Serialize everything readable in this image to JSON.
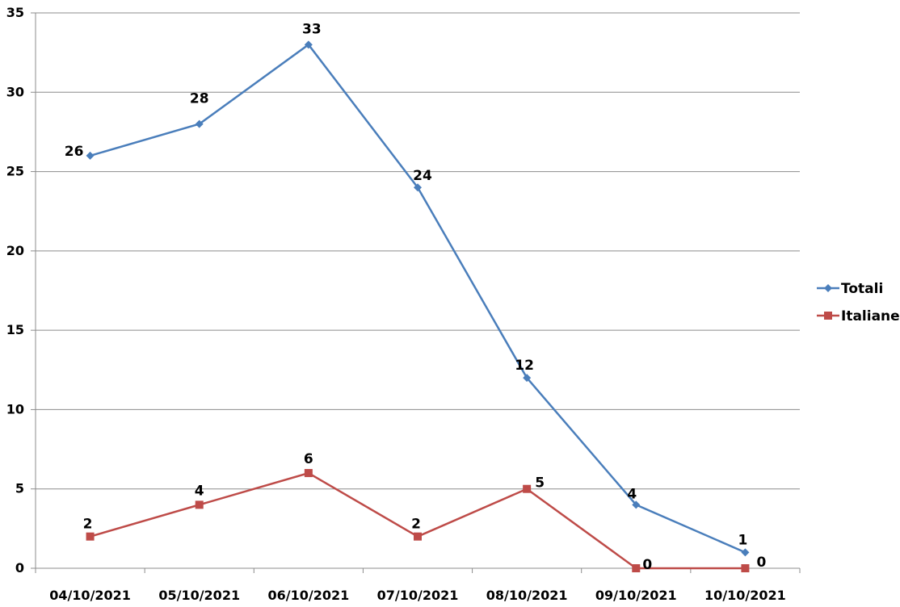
{
  "chart_data": {
    "type": "line",
    "categories": [
      "04/10/2021",
      "05/10/2021",
      "06/10/2021",
      "07/10/2021",
      "08/10/2021",
      "09/10/2021",
      "10/10/2021"
    ],
    "series": [
      {
        "name": "Totali",
        "values": [
          26,
          28,
          33,
          24,
          12,
          4,
          1
        ],
        "color": "#4a7ebb",
        "marker": "diamond"
      },
      {
        "name": "Italiane",
        "values": [
          2,
          4,
          6,
          2,
          5,
          0,
          0
        ],
        "color": "#be4b48",
        "marker": "square"
      }
    ],
    "title": "",
    "xlabel": "",
    "ylabel": "",
    "ylim": [
      0,
      35
    ],
    "yticks": [
      "0",
      "5",
      "10",
      "15",
      "20",
      "25",
      "30",
      "35"
    ],
    "grid": true,
    "legend_position": "right"
  }
}
